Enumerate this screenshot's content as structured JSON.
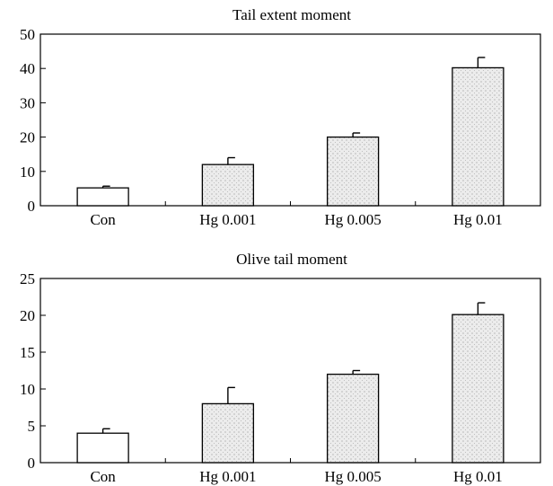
{
  "chart_data": [
    {
      "type": "bar",
      "title": "Tail extent moment",
      "xlabel": "",
      "ylabel": "",
      "ylim": [
        0,
        50
      ],
      "yticks": [
        0,
        10,
        20,
        30,
        40,
        50
      ],
      "categories": [
        "Con",
        "Hg 0.001",
        "Hg 0.005",
        "Hg 0.01"
      ],
      "values": [
        5.2,
        12,
        20,
        40.2
      ],
      "errors": [
        0.5,
        2,
        1.2,
        3
      ],
      "grid": false,
      "colors": {
        "con": "#ffffff",
        "treated": "#e4e4e4",
        "stroke": "#000000"
      }
    },
    {
      "type": "bar",
      "title": "Olive tail moment",
      "xlabel": "",
      "ylabel": "",
      "ylim": [
        0,
        25
      ],
      "yticks": [
        0,
        5,
        10,
        15,
        20,
        25
      ],
      "categories": [
        "Con",
        "Hg 0.001",
        "Hg 0.005",
        "Hg 0.01"
      ],
      "values": [
        4,
        8,
        12,
        20.1
      ],
      "errors": [
        0.6,
        2.2,
        0.5,
        1.6
      ],
      "grid": false,
      "colors": {
        "con": "#ffffff",
        "treated": "#e4e4e4",
        "stroke": "#000000"
      }
    }
  ]
}
